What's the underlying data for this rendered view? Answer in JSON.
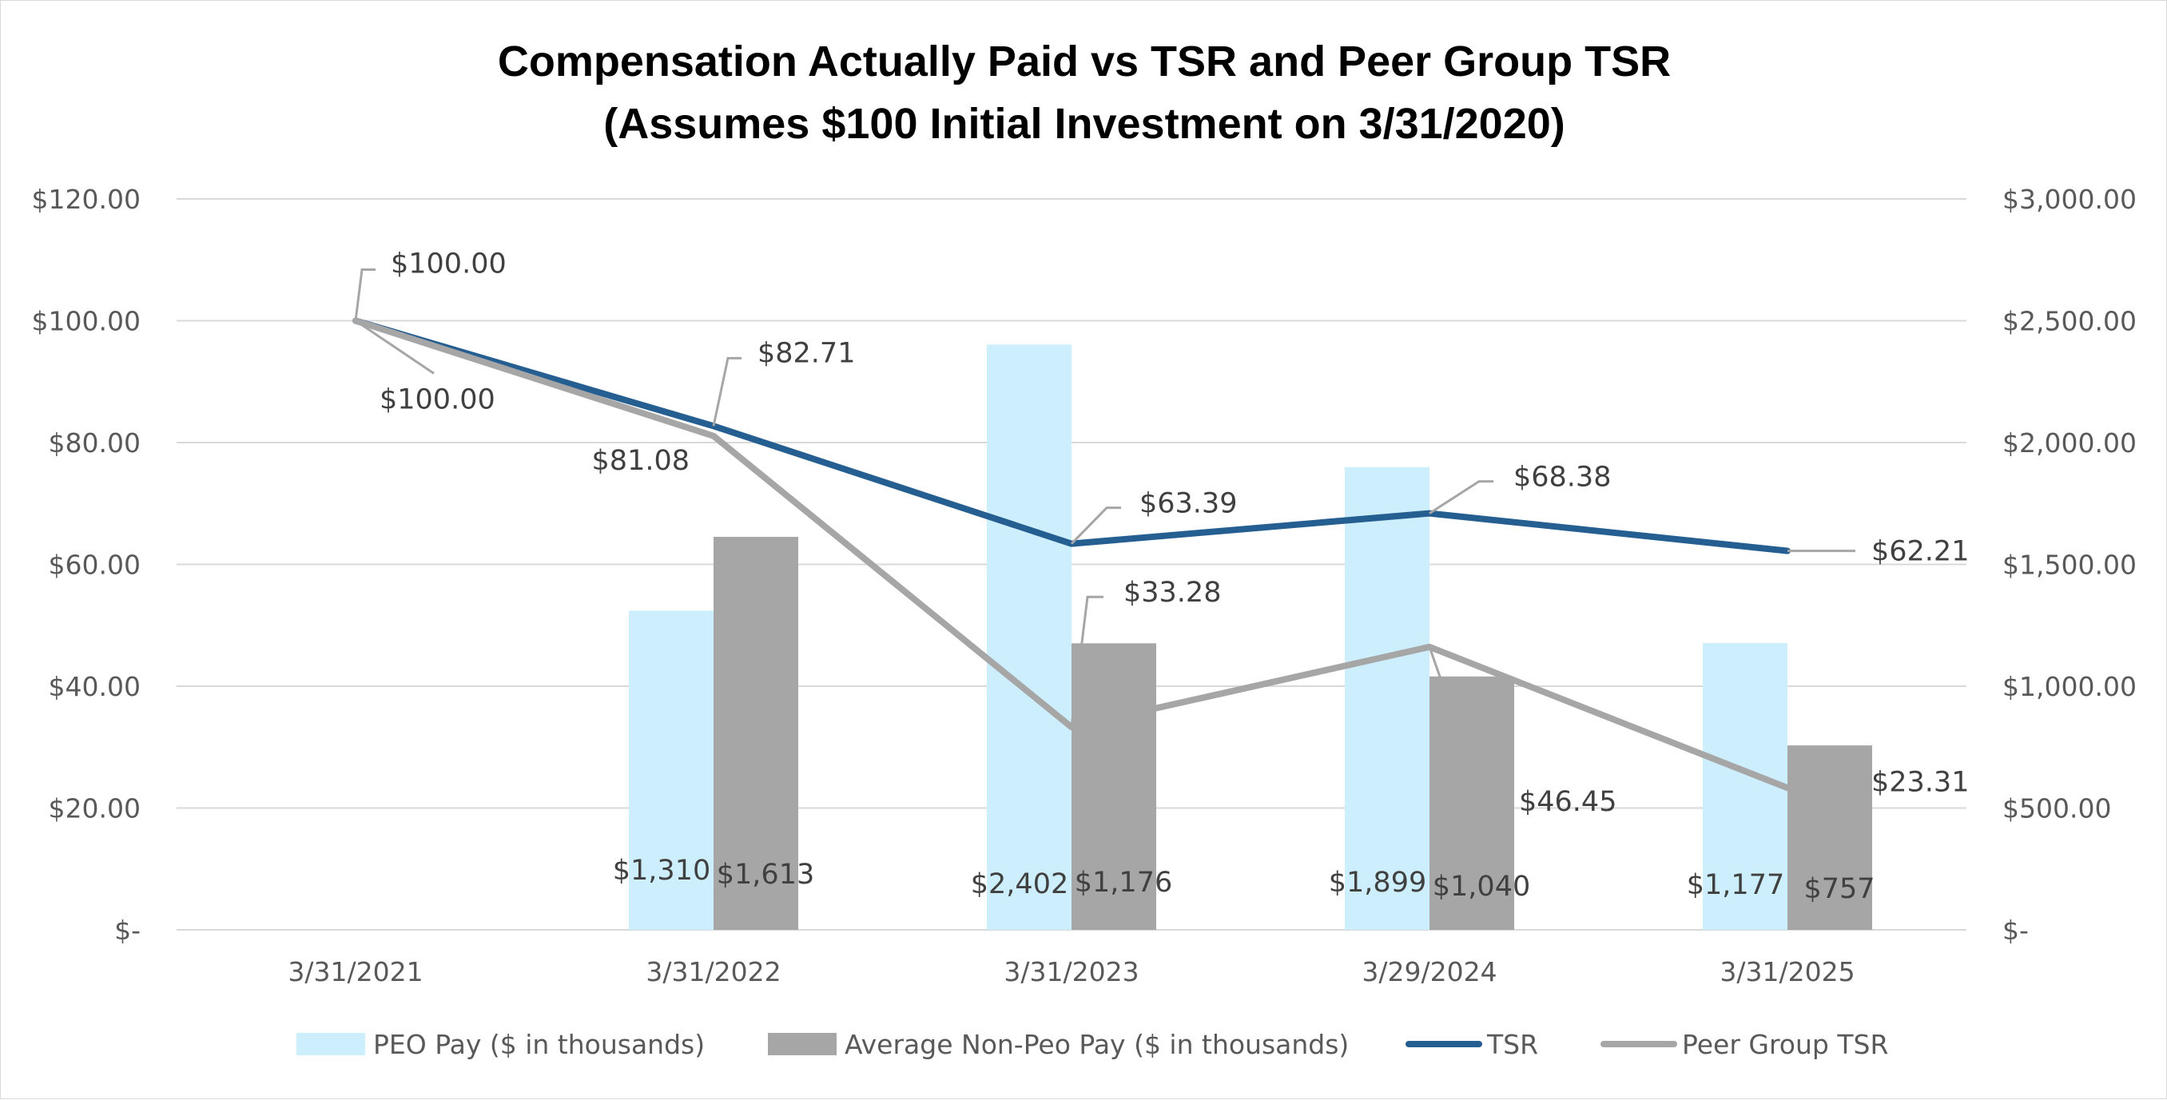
{
  "chart_data": {
    "type": "bar",
    "title": [
      "Compensation Actually Paid vs TSR and Peer Group TSR",
      "(Assumes $100 Initial Investment on 3/31/2020)"
    ],
    "categories": [
      "3/31/2021",
      "3/31/2022",
      "3/31/2023",
      "3/29/2024",
      "3/31/2025"
    ],
    "y_left": {
      "ylim": [
        0,
        120
      ],
      "step": 20,
      "tick_labels": [
        "$-",
        "$20.00",
        "$40.00",
        "$60.00",
        "$80.00",
        "$100.00",
        "$120.00"
      ]
    },
    "y_right": {
      "ylim": [
        0,
        3000
      ],
      "step": 500,
      "tick_labels": [
        "$-",
        "$500.00",
        "$1,000.00",
        "$1,500.00",
        "$2,000.00",
        "$2,500.00",
        "$3,000.00"
      ]
    },
    "grid": true,
    "legend_position": "bottom",
    "series": [
      {
        "name": "PEO Pay ($ in thousands)",
        "kind": "bar",
        "axis": "right",
        "color": "#cdeefc",
        "values": [
          null,
          1310,
          2402,
          1899,
          1177
        ],
        "labels": [
          "",
          "$1,310",
          "$2,402",
          "$1,899",
          "$1,177"
        ]
      },
      {
        "name": "Average Non-Peo Pay ($ in thousands)",
        "kind": "bar",
        "axis": "right",
        "color": "#a6a6a6",
        "values": [
          null,
          1613,
          1176,
          1040,
          757
        ],
        "labels": [
          "",
          "$1,613",
          "$1,176",
          "$1,040",
          "$757"
        ]
      },
      {
        "name": "TSR",
        "kind": "line",
        "axis": "left",
        "color": "#255e91",
        "values": [
          100.0,
          82.71,
          63.39,
          68.38,
          62.21
        ],
        "labels": [
          "$100.00",
          "$82.71",
          "$63.39",
          "$68.38",
          "$62.21"
        ]
      },
      {
        "name": "Peer Group TSR",
        "kind": "line",
        "axis": "left",
        "color": "#a6a6a6",
        "values": [
          100.0,
          81.08,
          33.28,
          46.45,
          23.31
        ],
        "labels": [
          "$100.00",
          "$81.08",
          "$33.28",
          "$46.45",
          "$23.31"
        ]
      }
    ]
  }
}
